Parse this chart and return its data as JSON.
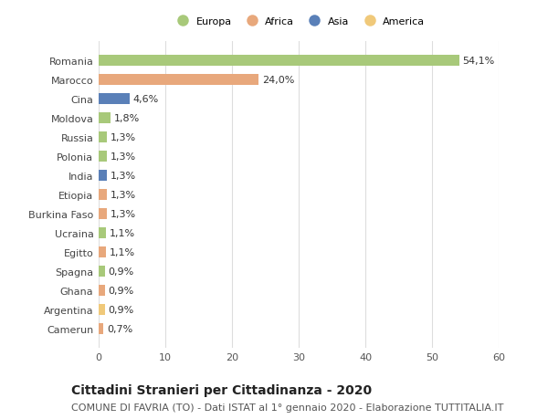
{
  "countries": [
    "Romania",
    "Marocco",
    "Cina",
    "Moldova",
    "Russia",
    "Polonia",
    "India",
    "Etiopia",
    "Burkina Faso",
    "Ucraina",
    "Egitto",
    "Spagna",
    "Ghana",
    "Argentina",
    "Camerun"
  ],
  "values": [
    54.1,
    24.0,
    4.6,
    1.8,
    1.3,
    1.3,
    1.3,
    1.3,
    1.3,
    1.1,
    1.1,
    0.9,
    0.9,
    0.9,
    0.7
  ],
  "labels": [
    "54,1%",
    "24,0%",
    "4,6%",
    "1,8%",
    "1,3%",
    "1,3%",
    "1,3%",
    "1,3%",
    "1,3%",
    "1,1%",
    "1,1%",
    "0,9%",
    "0,9%",
    "0,9%",
    "0,7%"
  ],
  "continents": [
    "Europa",
    "Africa",
    "Asia",
    "Europa",
    "Europa",
    "Europa",
    "Asia",
    "Africa",
    "Africa",
    "Europa",
    "Africa",
    "Europa",
    "Africa",
    "America",
    "Africa"
  ],
  "continent_colors": {
    "Europa": "#a8c97a",
    "Africa": "#e8a87c",
    "Asia": "#5a80b8",
    "America": "#f0c97a"
  },
  "legend_order": [
    "Europa",
    "Africa",
    "Asia",
    "America"
  ],
  "xlim": [
    0,
    60
  ],
  "xticks": [
    0,
    10,
    20,
    30,
    40,
    50,
    60
  ],
  "title": "Cittadini Stranieri per Cittadinanza - 2020",
  "subtitle": "COMUNE DI FAVRIA (TO) - Dati ISTAT al 1° gennaio 2020 - Elaborazione TUTTITALIA.IT",
  "title_fontsize": 10,
  "subtitle_fontsize": 8,
  "label_fontsize": 8,
  "tick_fontsize": 8,
  "background_color": "#ffffff",
  "grid_color": "#dddddd",
  "bar_height": 0.55
}
